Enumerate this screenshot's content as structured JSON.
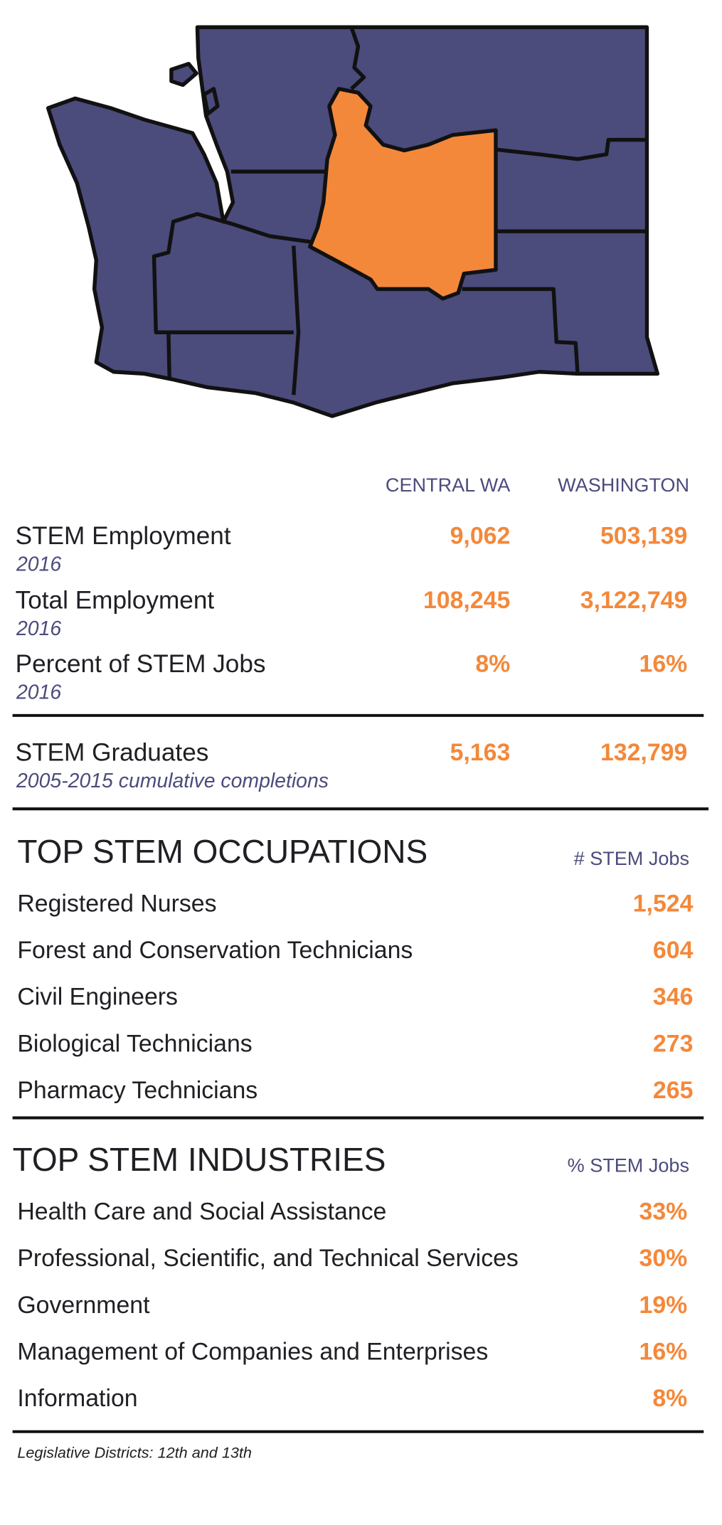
{
  "columns": [
    "CENTRAL WA",
    "WASHINGTON"
  ],
  "stats": [
    {
      "label": "STEM Employment",
      "note": "2016",
      "central": "9,062",
      "washington": "503,139"
    },
    {
      "label": "Total Employment",
      "note": "2016",
      "central": "108,245",
      "washington": "3,122,749"
    },
    {
      "label": "Percent of STEM Jobs",
      "note": "2016",
      "central": "8%",
      "washington": "16%"
    },
    {
      "label": "STEM Graduates",
      "note": "2005-2015 cumulative completions",
      "central": "5,163",
      "washington": "132,799"
    }
  ],
  "occupations": {
    "title": "TOP STEM OCCUPATIONS",
    "column": "# STEM Jobs",
    "items": [
      {
        "name": "Registered Nurses",
        "value": "1,524"
      },
      {
        "name": "Forest and Conservation Technicians",
        "value": "604"
      },
      {
        "name": "Civil Engineers",
        "value": "346"
      },
      {
        "name": "Biological Technicians",
        "value": "273"
      },
      {
        "name": "Pharmacy Technicians",
        "value": "265"
      }
    ]
  },
  "industries": {
    "title": "TOP STEM INDUSTRIES",
    "column": "% STEM Jobs",
    "items": [
      {
        "name": "Health Care and Social Assistance",
        "value": "33%"
      },
      {
        "name": "Professional, Scientific, and Technical Services",
        "value": "30%"
      },
      {
        "name": "Government",
        "value": "19%"
      },
      {
        "name": "Management of Companies and Enterprises",
        "value": "16%"
      },
      {
        "name": "Information",
        "value": "8%"
      }
    ]
  },
  "footnote": "Legislative Districts: 12th and 13th"
}
